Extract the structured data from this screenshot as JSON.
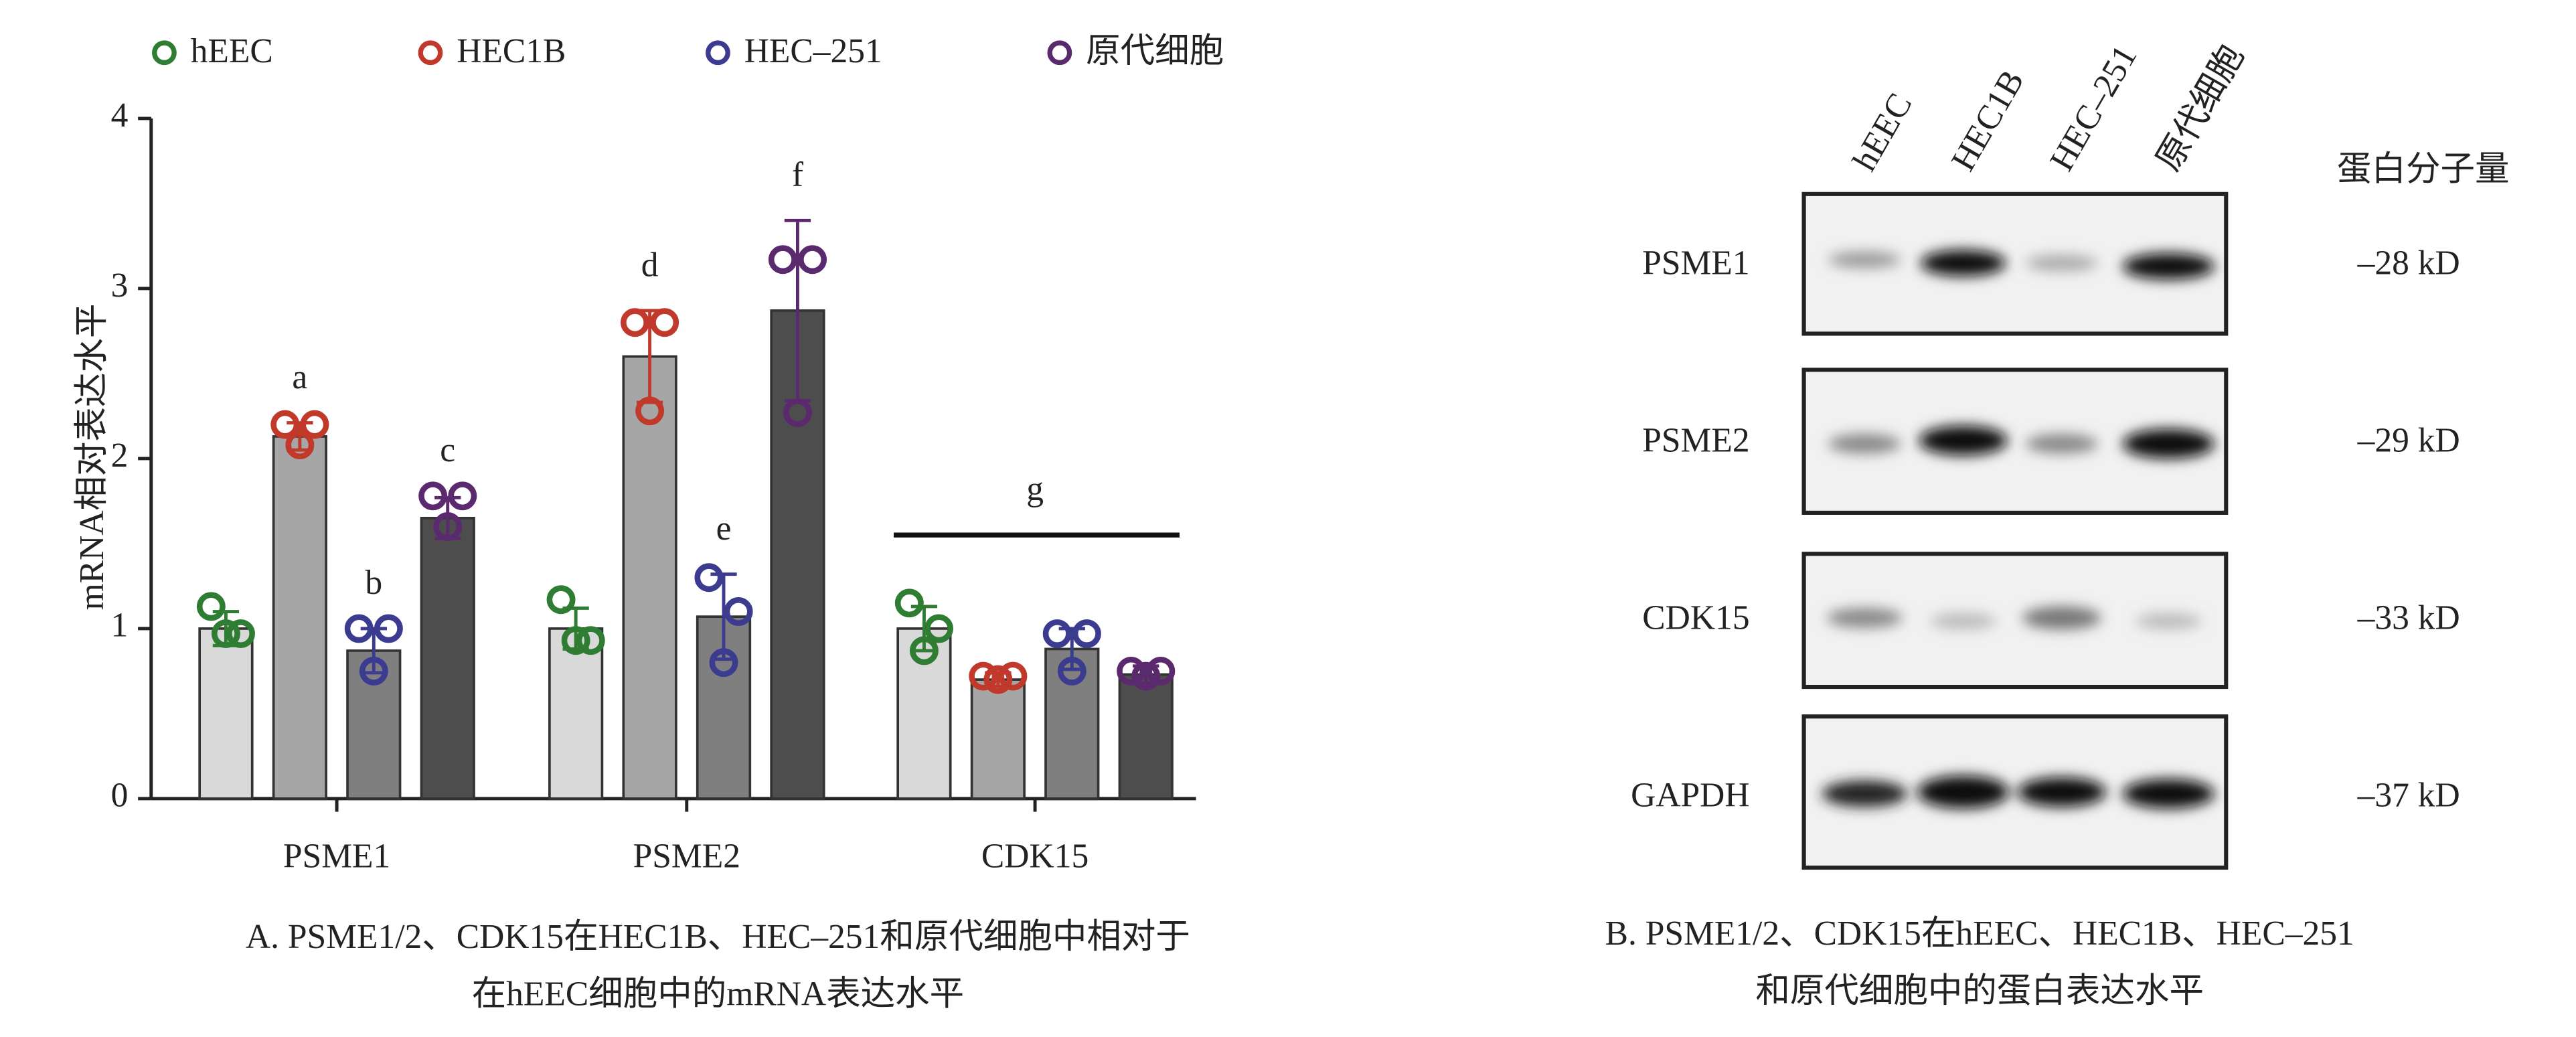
{
  "chart_data": {
    "type": "bar",
    "y_label": "mRNA相对表达水平",
    "categories": [
      "PSME1",
      "PSME2",
      "CDK15"
    ],
    "ylim": [
      0,
      4
    ],
    "yticks": [
      0,
      1,
      2,
      3,
      4
    ],
    "series": [
      {
        "name": "hEEC",
        "color": "#2f7d32",
        "bar_color": "#d9d9d9",
        "values": [
          1.0,
          1.0,
          1.0
        ],
        "errors": [
          0.1,
          0.12,
          0.13
        ],
        "points": [
          [
            1.13,
            0.97,
            0.97
          ],
          [
            1.17,
            0.93,
            0.93
          ],
          [
            1.15,
            1.0,
            0.87
          ]
        ],
        "labels": [
          null,
          null,
          null
        ]
      },
      {
        "name": "HEC1B",
        "color": "#c0392b",
        "bar_color": "#a6a6a6",
        "values": [
          2.13,
          2.6,
          0.7
        ],
        "errors": [
          0.08,
          0.27,
          0.04
        ],
        "points": [
          [
            2.2,
            2.2,
            2.08
          ],
          [
            2.8,
            2.8,
            2.28
          ],
          [
            0.72,
            0.72,
            0.7
          ]
        ],
        "labels": [
          "a",
          "d",
          null
        ]
      },
      {
        "name": "HEC–251",
        "color": "#3b3b8f",
        "bar_color": "#7f7f7f",
        "values": [
          0.87,
          1.07,
          0.88
        ],
        "errors": [
          0.13,
          0.25,
          0.12
        ],
        "points": [
          [
            1.0,
            1.0,
            0.75
          ],
          [
            1.3,
            1.1,
            0.8
          ],
          [
            0.97,
            0.97,
            0.75
          ]
        ],
        "labels": [
          "b",
          "e",
          null
        ]
      },
      {
        "name": "原代细胞",
        "color": "#5b2a6e",
        "bar_color": "#4d4d4d",
        "values": [
          1.65,
          2.87,
          0.73
        ],
        "errors": [
          0.12,
          0.53,
          0.05
        ],
        "points": [
          [
            1.78,
            1.78,
            1.6
          ],
          [
            3.17,
            3.17,
            2.27
          ],
          [
            0.75,
            0.75,
            0.72
          ]
        ],
        "labels": [
          "c",
          "f",
          null
        ]
      }
    ],
    "group_labels": [
      null,
      null,
      "g"
    ],
    "caption": [
      "A. PSME1/2、CDK15在HEC1B、HEC–251和原代细胞中相对于",
      "在hEEC细胞中的mRNA表达水平"
    ]
  },
  "blot": {
    "lanes": [
      "hEEC",
      "HEC1B",
      "HEC–251",
      "原代细胞"
    ],
    "mw_header": "蛋白分子量",
    "rows": [
      {
        "name": "PSME1",
        "mw": "–28 kD"
      },
      {
        "name": "PSME2",
        "mw": "–29 kD"
      },
      {
        "name": "CDK15",
        "mw": "–33 kD"
      },
      {
        "name": "GAPDH",
        "mw": "–37 kD"
      }
    ],
    "caption": [
      "B. PSME1/2、CDK15在hEEC、HEC1B、HEC–251",
      "和原代细胞中的蛋白表达水平"
    ]
  }
}
